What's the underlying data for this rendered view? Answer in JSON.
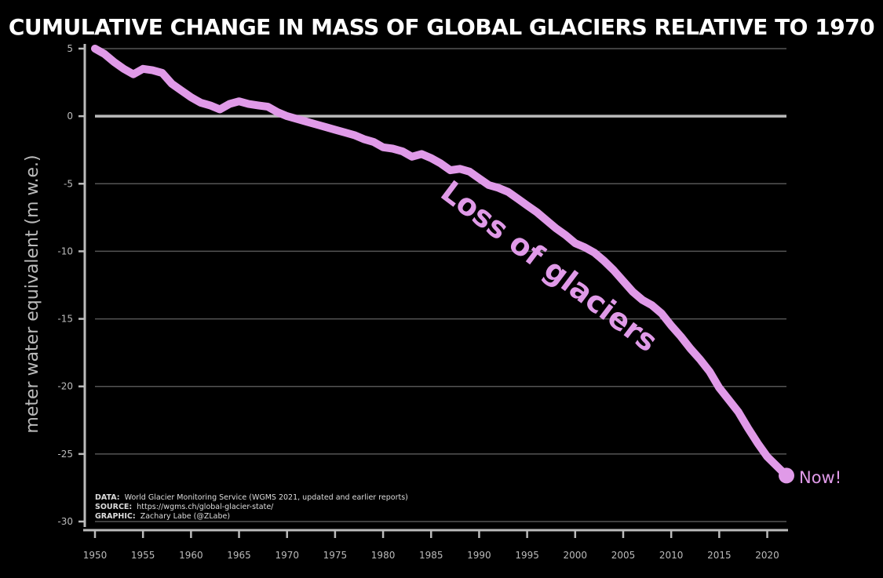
{
  "chart_data": {
    "type": "line",
    "title": "CUMULATIVE CHANGE IN MASS OF GLOBAL GLACIERS RELATIVE TO 1970",
    "ylabel": "meter water equivalent (m w.e.)",
    "xlabel": "",
    "xlim": [
      1950,
      2022
    ],
    "ylim": [
      -30,
      5
    ],
    "xticks": [
      1950,
      1955,
      1960,
      1965,
      1970,
      1975,
      1980,
      1985,
      1990,
      1995,
      2000,
      2005,
      2010,
      2015,
      2020
    ],
    "yticks": [
      5,
      0,
      -5,
      -10,
      -15,
      -20,
      -25,
      -30
    ],
    "grid": "horizontal",
    "series": [
      {
        "color": "#e09ae8",
        "x": [
          1950,
          1951,
          1952,
          1953,
          1954,
          1955,
          1956,
          1957,
          1958,
          1959,
          1960,
          1961,
          1962,
          1963,
          1964,
          1965,
          1966,
          1967,
          1968,
          1969,
          1970,
          1971,
          1972,
          1973,
          1974,
          1975,
          1976,
          1977,
          1978,
          1979,
          1980,
          1981,
          1982,
          1983,
          1984,
          1985,
          1986,
          1987,
          1988,
          1989,
          1990,
          1991,
          1992,
          1993,
          1994,
          1995,
          1996,
          1997,
          1998,
          1999,
          2000,
          2001,
          2002,
          2003,
          2004,
          2005,
          2006,
          2007,
          2008,
          2009,
          2010,
          2011,
          2012,
          2013,
          2014,
          2015,
          2016,
          2017,
          2018,
          2019,
          2020,
          2021,
          2022
        ],
        "y": [
          5.0,
          4.6,
          4.0,
          3.5,
          3.1,
          3.5,
          3.4,
          3.2,
          2.4,
          1.9,
          1.4,
          1.0,
          0.8,
          0.5,
          0.9,
          1.1,
          0.9,
          0.8,
          0.7,
          0.3,
          0.0,
          -0.2,
          -0.4,
          -0.6,
          -0.8,
          -1.0,
          -1.2,
          -1.4,
          -1.7,
          -1.9,
          -2.3,
          -2.4,
          -2.6,
          -3.0,
          -2.8,
          -3.1,
          -3.5,
          -4.0,
          -3.9,
          -4.1,
          -4.6,
          -5.1,
          -5.3,
          -5.6,
          -6.1,
          -6.6,
          -7.1,
          -7.7,
          -8.3,
          -8.8,
          -9.4,
          -9.7,
          -10.1,
          -10.7,
          -11.4,
          -12.2,
          -13.0,
          -13.6,
          -14.0,
          -14.6,
          -15.5,
          -16.3,
          -17.2,
          -18.0,
          -18.9,
          -20.1,
          -21.0,
          -21.9,
          -23.1,
          -24.2,
          -25.2,
          -25.9,
          -26.6
        ]
      }
    ],
    "annotations": [
      "Loss of glaciers",
      "Now!"
    ],
    "credits": [
      {
        "label": "DATA:",
        "text": "World Glacier Monitoring Service (WGMS 2021, updated and earlier reports)"
      },
      {
        "label": "SOURCE:",
        "text": "https://wgms.ch/global-glacier-state/"
      },
      {
        "label": "GRAPHIC:",
        "text": "Zachary Labe (@ZLabe)"
      }
    ]
  },
  "colors": {
    "background": "#000000",
    "line": "#e09ae8",
    "axis": "#bbbbbb",
    "grid": "#555555",
    "text": "#ffffff"
  }
}
